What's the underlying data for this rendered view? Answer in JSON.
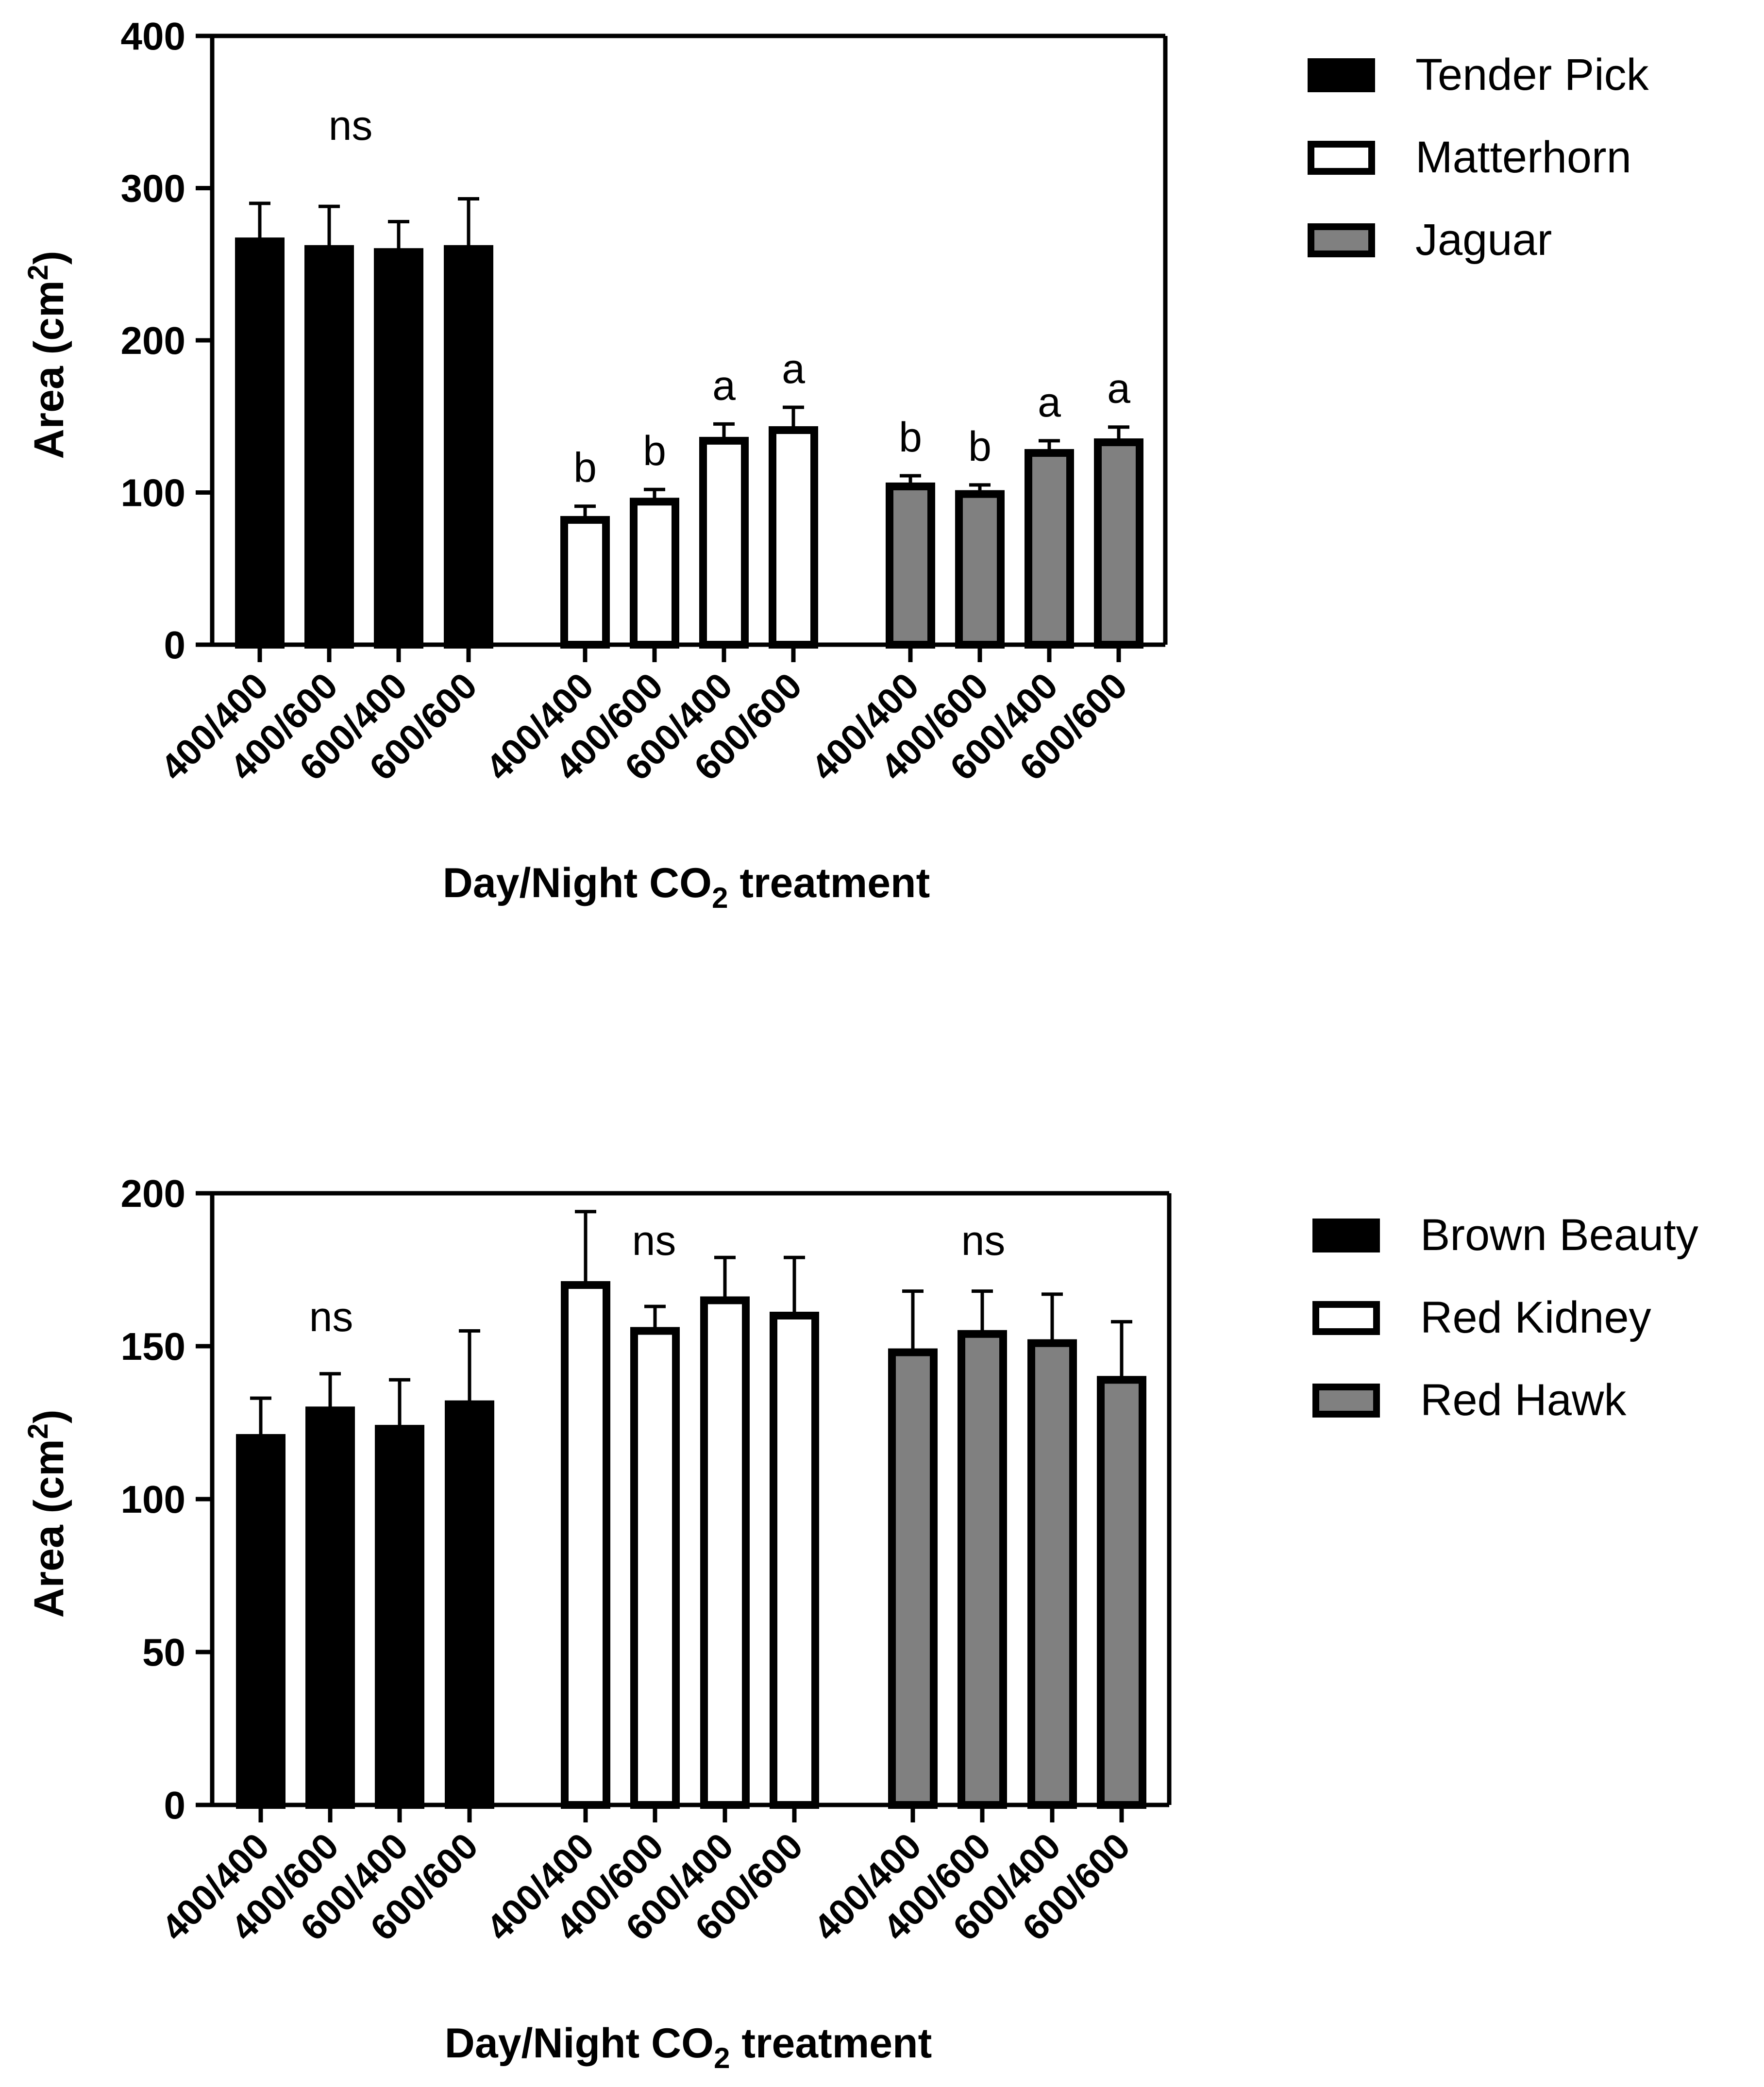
{
  "chart_data": [
    {
      "type": "bar",
      "x_tick_labels": [
        "400/400",
        "400/600",
        "600/400",
        "600/600"
      ],
      "xlabel_parts": [
        "Day/Night CO",
        "2",
        " treatment"
      ],
      "ylabel_parts": [
        "Area (cm",
        "2",
        ")"
      ],
      "ylim": [
        0,
        400
      ],
      "yticks": [
        0,
        100,
        200,
        300,
        400
      ],
      "legend_position": "right",
      "series": [
        {
          "name": "Tender Pick",
          "color": "#000000",
          "values": [
            265,
            260,
            258,
            260
          ],
          "errors": [
            25,
            28,
            20,
            33
          ],
          "letters": [
            "",
            "",
            "",
            ""
          ],
          "group_label": "ns"
        },
        {
          "name": "Matterhorn",
          "color": "#ffffff",
          "values": [
            82,
            94,
            134,
            141
          ],
          "errors": [
            9,
            8,
            11,
            15
          ],
          "letters": [
            "b",
            "b",
            "a",
            "a"
          ],
          "group_label": ""
        },
        {
          "name": "Jaguar",
          "color": "#808080",
          "values": [
            104,
            99,
            126,
            133
          ],
          "errors": [
            7,
            6,
            8,
            10
          ],
          "letters": [
            "b",
            "b",
            "a",
            "a"
          ],
          "group_label": ""
        }
      ]
    },
    {
      "type": "bar",
      "x_tick_labels": [
        "400/400",
        "400/600",
        "600/400",
        "600/600"
      ],
      "xlabel_parts": [
        "Day/Night CO",
        "2",
        " treatment"
      ],
      "ylabel_parts": [
        "Area (cm",
        "2",
        ")"
      ],
      "ylim": [
        0,
        200
      ],
      "yticks": [
        0,
        50,
        100,
        150,
        200
      ],
      "legend_position": "right",
      "series": [
        {
          "name": "Brown Beauty",
          "color": "#000000",
          "values": [
            120,
            129,
            123,
            131
          ],
          "errors": [
            13,
            12,
            16,
            24
          ],
          "letters": [
            "",
            "",
            "",
            ""
          ],
          "group_label": "ns"
        },
        {
          "name": "Red Kidney",
          "color": "#ffffff",
          "values": [
            170,
            155,
            165,
            160
          ],
          "errors": [
            24,
            8,
            14,
            19
          ],
          "letters": [
            "",
            "",
            "",
            ""
          ],
          "group_label": "ns"
        },
        {
          "name": "Red Hawk",
          "color": "#808080",
          "values": [
            148,
            154,
            151,
            139
          ],
          "errors": [
            20,
            14,
            16,
            19
          ],
          "letters": [
            "",
            "",
            "",
            ""
          ],
          "group_label": "ns"
        }
      ]
    }
  ]
}
